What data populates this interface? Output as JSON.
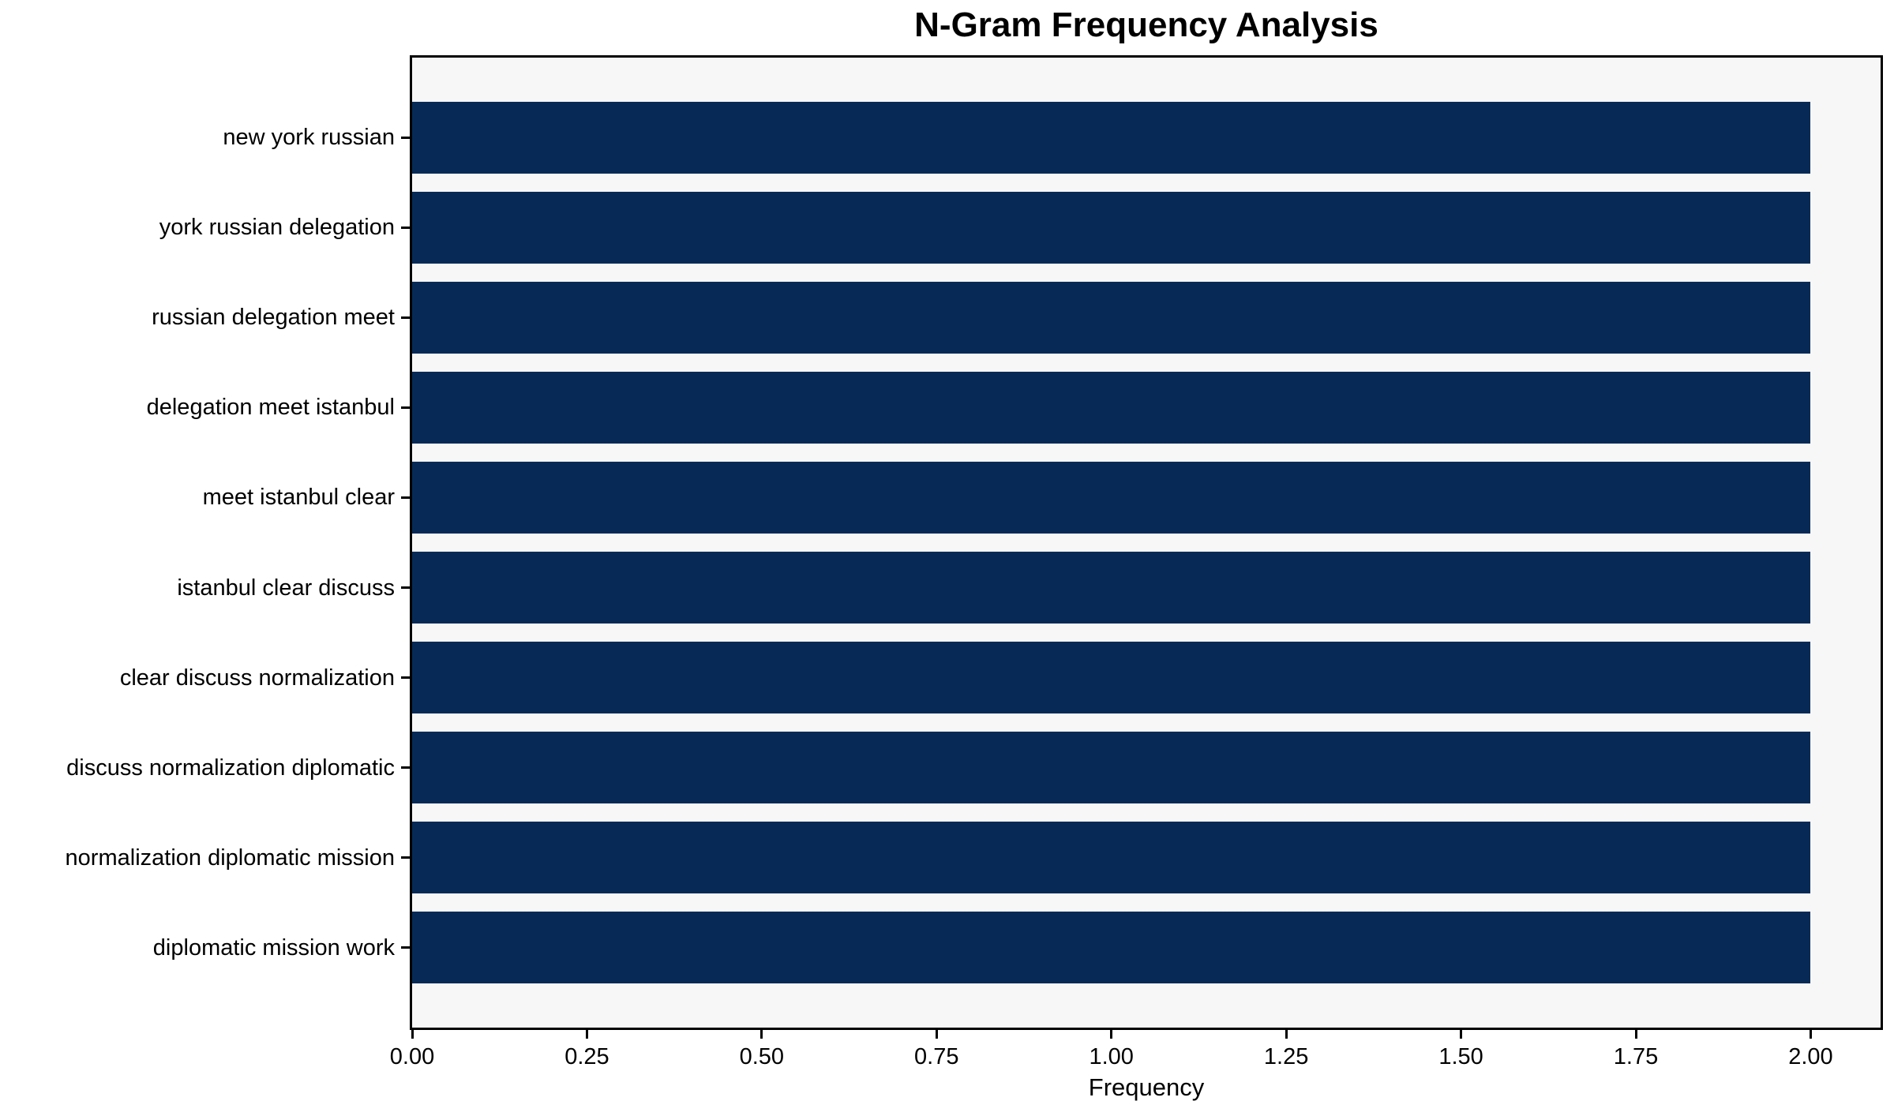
{
  "chart_data": {
    "type": "bar",
    "orientation": "horizontal",
    "title": "N-Gram Frequency Analysis",
    "xlabel": "Frequency",
    "ylabel": "",
    "categories": [
      "new york russian",
      "york russian delegation",
      "russian delegation meet",
      "delegation meet istanbul",
      "meet istanbul clear",
      "istanbul clear discuss",
      "clear discuss normalization",
      "discuss normalization diplomatic",
      "normalization diplomatic mission",
      "diplomatic mission work"
    ],
    "values": [
      2,
      2,
      2,
      2,
      2,
      2,
      2,
      2,
      2,
      2
    ],
    "xlim": [
      0,
      2.1
    ],
    "x_ticks": [
      "0.00",
      "0.25",
      "0.50",
      "0.75",
      "1.00",
      "1.25",
      "1.50",
      "1.75",
      "2.00"
    ],
    "x_tick_values": [
      0,
      0.25,
      0.5,
      0.75,
      1.0,
      1.25,
      1.5,
      1.75,
      2.0
    ],
    "bar_color": "#062a55",
    "plot_bg": "#f7f7f7",
    "spine_color": "#000000",
    "grid": false,
    "legend": null
  }
}
